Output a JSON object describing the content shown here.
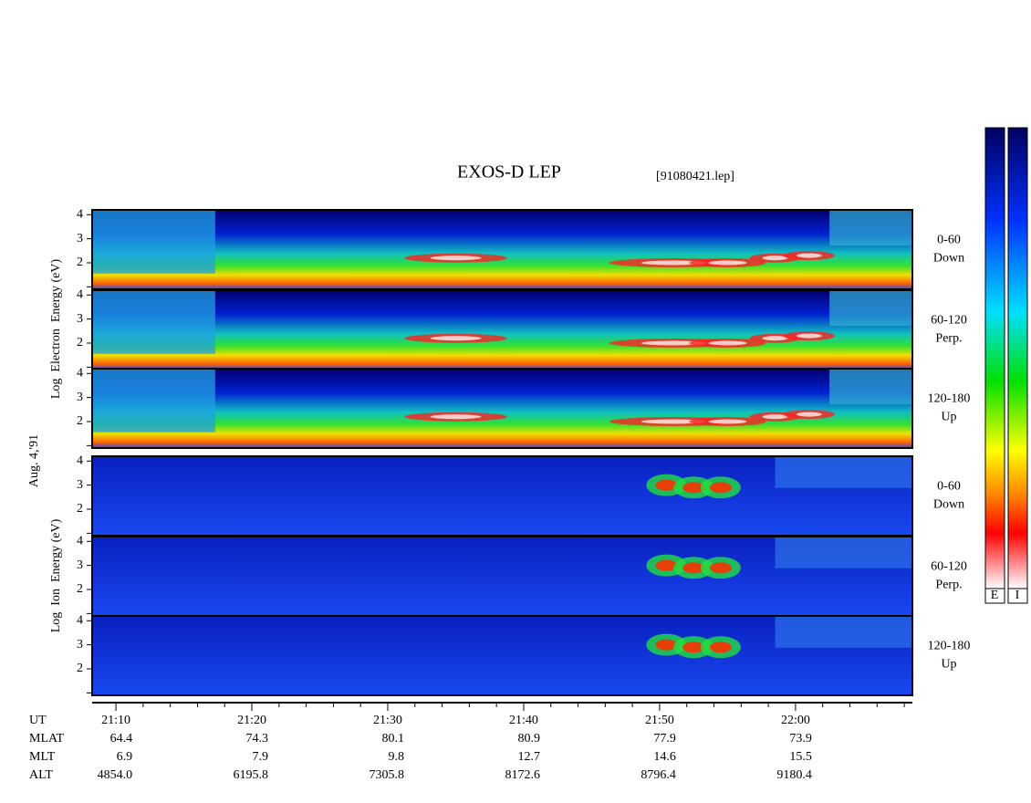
{
  "chart_data": {
    "type": "spectrogram",
    "title": "EXOS-D LEP",
    "file": "[91080421.lep]",
    "date": "Aug. 4,'91",
    "xlim": [
      8.25,
      68.6
    ],
    "xticks": [
      {
        "value": 10,
        "label": "21:10"
      },
      {
        "value": 20,
        "label": "21:20"
      },
      {
        "value": 30,
        "label": "21:30"
      },
      {
        "value": 40,
        "label": "21:40"
      },
      {
        "value": 50,
        "label": "21:50"
      },
      {
        "value": 60,
        "label": "22:00"
      }
    ],
    "minor_xticks": [
      12,
      14,
      16,
      18,
      22,
      24,
      26,
      28,
      32,
      34,
      36,
      38,
      42,
      44,
      46,
      48,
      52,
      54,
      56,
      58,
      62,
      64,
      66,
      68
    ],
    "ylim": [
      0.9,
      4.2
    ],
    "yticks": [
      2,
      3,
      4
    ],
    "minor_yticks": [
      1
    ],
    "groups": [
      {
        "species": "electron",
        "label": "Log  Electron  Energy (eV)",
        "panels": [
          {
            "angle": "0-60",
            "direction": "Down"
          },
          {
            "angle": "60-120",
            "direction": "Perp."
          },
          {
            "angle": "120-180",
            "direction": "Up"
          }
        ]
      },
      {
        "species": "ion",
        "label": "Log  Ion  Energy (eV)",
        "panels": [
          {
            "angle": "0-60",
            "direction": "Down"
          },
          {
            "angle": "60-120",
            "direction": "Perp."
          },
          {
            "angle": "120-180",
            "direction": "Up"
          }
        ]
      }
    ],
    "ut_label": "UT",
    "ephemeris": [
      {
        "label": "MLAT",
        "values": [
          "64.4",
          "74.3",
          "80.1",
          "80.9",
          "77.9",
          "73.9"
        ]
      },
      {
        "label": "MLT",
        "values": [
          "6.9",
          "7.9",
          "9.8",
          "12.7",
          "14.6",
          "15.5"
        ]
      },
      {
        "label": "ALT",
        "values": [
          "4854.0",
          "6195.8",
          "7305.8",
          "8172.6",
          "8796.4",
          "9180.4"
        ]
      }
    ],
    "colorbar_labels": [
      "E",
      "I"
    ]
  }
}
